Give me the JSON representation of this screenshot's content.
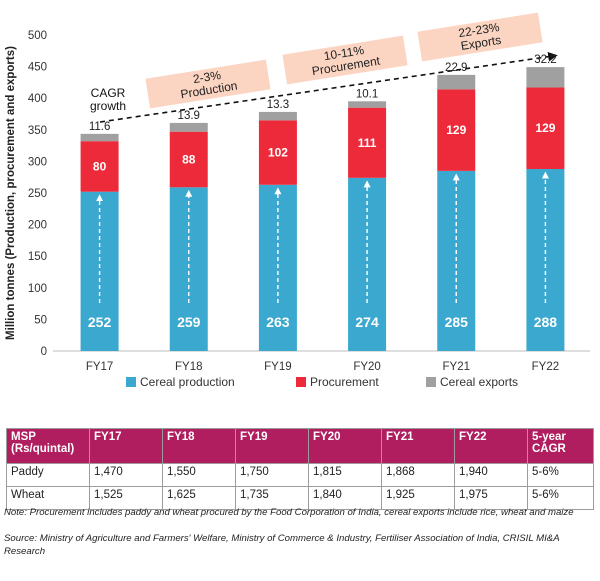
{
  "chart_data": {
    "type": "bar",
    "stacked": true,
    "categories": [
      "FY17",
      "FY18",
      "FY19",
      "FY20",
      "FY21",
      "FY22"
    ],
    "series": [
      {
        "name": "Cereal production",
        "color": "#3aa8cf",
        "values": [
          252,
          259,
          263,
          274,
          285,
          288
        ],
        "labels": [
          "252",
          "259",
          "263",
          "274",
          "285",
          "288"
        ]
      },
      {
        "name": "Procurement",
        "color": "#ec2a3a",
        "values": [
          80,
          88,
          102,
          111,
          129,
          129
        ],
        "labels": [
          "80",
          "88",
          "102",
          "111",
          "129",
          "129"
        ]
      },
      {
        "name": "Cereal exports",
        "color": "#a0a0a0",
        "values": [
          11.6,
          13.9,
          13.3,
          10.1,
          22.9,
          32.2
        ],
        "labels": [
          "11.6",
          "13.9",
          "13.3",
          "10.1",
          "22.9",
          "32.2"
        ]
      }
    ],
    "ylabel": "Million tonnes (Production, procurement and exports)",
    "ylim": [
      0,
      500
    ],
    "yticks": [
      0,
      50,
      100,
      150,
      200,
      250,
      300,
      350,
      400,
      450,
      500
    ],
    "legend_position": "bottom",
    "annotations": {
      "cagr": "CAGR growth",
      "callouts": [
        {
          "text": "2-3% Production"
        },
        {
          "text": "10-11% Procurement"
        },
        {
          "text": "22-23% Exports"
        }
      ]
    }
  },
  "msp_table": {
    "headers": [
      "MSP (Rs/quintal)",
      "FY17",
      "FY18",
      "FY19",
      "FY20",
      "FY21",
      "FY22",
      "5-year CAGR"
    ],
    "rows": [
      [
        "Paddy",
        "1,470",
        "1,550",
        "1,750",
        "1,815",
        "1,868",
        "1,940",
        "5-6%"
      ],
      [
        "Wheat",
        "1,525",
        "1,625",
        "1,735",
        "1,840",
        "1,925",
        "1,975",
        "5-6%"
      ]
    ]
  },
  "note": "Note: Procurement includes paddy and wheat procured by the Food Corporation of India, cereal exports include rice, wheat and maize",
  "source": "Source: Ministry of Agriculture and Farmers' Welfare, Ministry of Commerce & Industry, Fertiliser Association of India, CRISIL MI&A Research"
}
